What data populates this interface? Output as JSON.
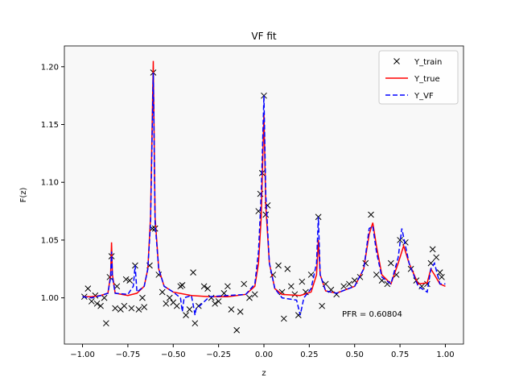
{
  "chart_data": {
    "type": "line",
    "title": "VF fit",
    "x_label": "z",
    "y_label": "F(z)",
    "annotation": "PFR = 0.60804",
    "xlim": [
      -1.1,
      1.1
    ],
    "ylim": [
      0.96,
      1.218
    ],
    "xticks": [
      {
        "value": -1,
        "label": "−1.00"
      },
      {
        "value": -0.75,
        "label": "−0.75"
      },
      {
        "value": -0.5,
        "label": "−0.50"
      },
      {
        "value": -0.25,
        "label": "−0.25"
      },
      {
        "value": 0,
        "label": "0.00"
      },
      {
        "value": 0.25,
        "label": "0.25"
      },
      {
        "value": 0.5,
        "label": "0.50"
      },
      {
        "value": 0.75,
        "label": "0.75"
      },
      {
        "value": 1,
        "label": "1.00"
      }
    ],
    "yticks": [
      {
        "value": 1,
        "label": "1.00"
      },
      {
        "value": 1.05,
        "label": "1.05"
      },
      {
        "value": 1.1,
        "label": "1.10"
      },
      {
        "value": 1.15,
        "label": "1.15"
      },
      {
        "value": 1.2,
        "label": "1.20"
      }
    ],
    "legend": "upper right",
    "grid": false,
    "background": "#f8f8f8",
    "series": [
      {
        "name": "Y_train",
        "color": "#000000",
        "marker": "x",
        "linestyle": "none",
        "x": [
          -0.99,
          -0.97,
          -0.95,
          -0.93,
          -0.92,
          -0.9,
          -0.88,
          -0.87,
          -0.85,
          -0.84,
          -0.82,
          -0.81,
          -0.79,
          -0.77,
          -0.76,
          -0.74,
          -0.73,
          -0.71,
          -0.69,
          -0.67,
          -0.66,
          -0.63,
          -0.615,
          -0.61,
          -0.6,
          -0.58,
          -0.56,
          -0.54,
          -0.52,
          -0.5,
          -0.48,
          -0.46,
          -0.45,
          -0.43,
          -0.41,
          -0.39,
          -0.38,
          -0.36,
          -0.33,
          -0.31,
          -0.29,
          -0.27,
          -0.25,
          -0.22,
          -0.2,
          -0.18,
          -0.15,
          -0.13,
          -0.11,
          -0.08,
          -0.05,
          -0.03,
          -0.02,
          -0.01,
          0.0,
          0.01,
          0.02,
          0.05,
          0.08,
          0.1,
          0.11,
          0.13,
          0.15,
          0.17,
          0.19,
          0.21,
          0.23,
          0.26,
          0.3,
          0.32,
          0.34,
          0.37,
          0.4,
          0.44,
          0.47,
          0.5,
          0.53,
          0.56,
          0.59,
          0.62,
          0.65,
          0.68,
          0.7,
          0.73,
          0.75,
          0.78,
          0.81,
          0.84,
          0.87,
          0.9,
          0.92,
          0.93,
          0.95,
          0.97,
          0.98
        ],
        "values": [
          1.001,
          1.008,
          0.997,
          1.002,
          0.995,
          0.993,
          1.0,
          0.978,
          1.018,
          1.036,
          0.991,
          1.01,
          0.99,
          0.993,
          1.016,
          1.015,
          0.991,
          1.028,
          0.99,
          1.0,
          0.992,
          1.028,
          1.06,
          1.195,
          1.06,
          1.02,
          1.005,
          0.995,
          1.0,
          0.996,
          0.993,
          1.01,
          1.011,
          0.985,
          0.99,
          1.022,
          0.978,
          0.993,
          1.01,
          1.008,
          1.0,
          0.995,
          0.997,
          1.004,
          1.01,
          0.99,
          0.972,
          0.988,
          1.012,
          1.0,
          1.003,
          1.075,
          1.09,
          1.108,
          1.175,
          1.072,
          1.08,
          1.02,
          1.028,
          1.005,
          0.982,
          1.025,
          1.01,
          1.003,
          0.985,
          1.014,
          1.005,
          1.02,
          1.07,
          0.993,
          1.012,
          1.007,
          1.003,
          1.01,
          1.012,
          1.015,
          1.018,
          1.03,
          1.072,
          1.02,
          1.015,
          1.012,
          1.03,
          1.02,
          1.05,
          1.048,
          1.025,
          1.015,
          1.01,
          1.012,
          1.03,
          1.042,
          1.035,
          1.022,
          1.018
        ]
      },
      {
        "name": "Y_true",
        "color": "#ff0000",
        "linestyle": "solid",
        "x": [
          -1.0,
          -0.95,
          -0.9,
          -0.86,
          -0.845,
          -0.84,
          -0.835,
          -0.82,
          -0.75,
          -0.7,
          -0.66,
          -0.64,
          -0.625,
          -0.61,
          -0.6,
          -0.58,
          -0.55,
          -0.5,
          -0.4,
          -0.3,
          -0.2,
          -0.1,
          -0.05,
          -0.03,
          -0.015,
          0.0,
          0.01,
          0.03,
          0.06,
          0.1,
          0.2,
          0.26,
          0.29,
          0.3,
          0.31,
          0.34,
          0.4,
          0.5,
          0.55,
          0.58,
          0.6,
          0.62,
          0.65,
          0.7,
          0.74,
          0.77,
          0.8,
          0.85,
          0.9,
          0.92,
          0.94,
          0.97,
          1.0
        ],
        "values": [
          1.001,
          1.001,
          1.002,
          1.004,
          1.02,
          1.048,
          1.02,
          1.004,
          1.002,
          1.004,
          1.01,
          1.025,
          1.07,
          1.205,
          1.07,
          1.025,
          1.01,
          1.005,
          1.002,
          1.001,
          1.001,
          1.003,
          1.01,
          1.03,
          1.07,
          1.16,
          1.08,
          1.03,
          1.008,
          1.003,
          1.002,
          1.005,
          1.02,
          1.05,
          1.02,
          1.006,
          1.004,
          1.01,
          1.025,
          1.055,
          1.065,
          1.045,
          1.02,
          1.012,
          1.03,
          1.045,
          1.03,
          1.012,
          1.013,
          1.025,
          1.02,
          1.012,
          1.01
        ]
      },
      {
        "name": "Y_VF",
        "color": "#0000ff",
        "linestyle": "dashed",
        "x": [
          -1.0,
          -0.95,
          -0.9,
          -0.86,
          -0.845,
          -0.84,
          -0.835,
          -0.82,
          -0.75,
          -0.72,
          -0.71,
          -0.7,
          -0.66,
          -0.64,
          -0.625,
          -0.61,
          -0.6,
          -0.58,
          -0.55,
          -0.5,
          -0.46,
          -0.45,
          -0.44,
          -0.4,
          -0.385,
          -0.38,
          -0.375,
          -0.3,
          -0.2,
          -0.1,
          -0.05,
          -0.03,
          -0.015,
          0.0,
          0.01,
          0.03,
          0.06,
          0.1,
          0.18,
          0.2,
          0.22,
          0.26,
          0.29,
          0.3,
          0.31,
          0.34,
          0.4,
          0.5,
          0.55,
          0.58,
          0.6,
          0.62,
          0.65,
          0.7,
          0.74,
          0.76,
          0.8,
          0.85,
          0.9,
          0.92,
          0.94,
          0.97,
          1.0
        ],
        "values": [
          1.001,
          1.0,
          1.002,
          1.004,
          1.018,
          1.04,
          1.018,
          1.004,
          1.003,
          1.01,
          1.028,
          1.005,
          1.01,
          1.025,
          1.065,
          1.195,
          1.065,
          1.025,
          1.01,
          1.005,
          1.0,
          0.988,
          1.0,
          1.002,
          0.99,
          0.985,
          0.99,
          1.001,
          1.002,
          1.003,
          1.012,
          1.04,
          1.09,
          1.175,
          1.09,
          1.03,
          1.008,
          1.0,
          0.998,
          0.985,
          1.0,
          1.008,
          1.03,
          1.07,
          1.02,
          1.006,
          1.004,
          1.01,
          1.025,
          1.06,
          1.062,
          1.04,
          1.018,
          1.012,
          1.035,
          1.06,
          1.03,
          1.01,
          1.005,
          1.025,
          1.03,
          1.012,
          1.012
        ]
      }
    ]
  }
}
